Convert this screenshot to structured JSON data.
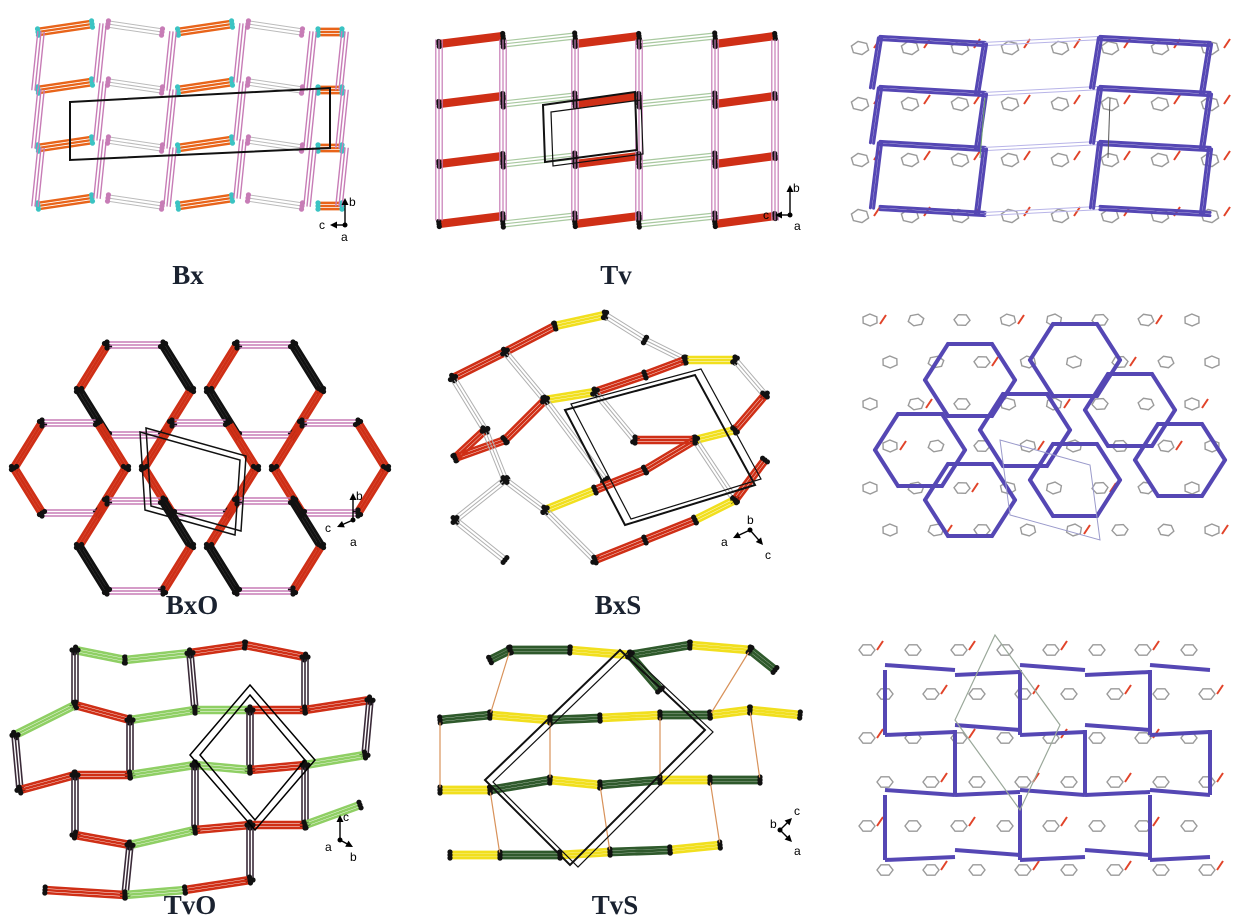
{
  "colors": {
    "red": "#cf2f16",
    "orange": "#e8641a",
    "pink": "#c77cb6",
    "green": "#8fcf64",
    "lightgreen": "#a9c9a0",
    "yellow": "#f1df1e",
    "darkgreen": "#2f5a2c",
    "purple": "#5547b4",
    "black": "#111111",
    "grey": "#9a9a9a",
    "cyan": "#3bc3c3",
    "tan": "#d8925a"
  },
  "captions": {
    "bx": "Bx",
    "tv": "Tv",
    "bxo": "BxO",
    "bxs": "BxS",
    "tvo": "TvO",
    "tvs": "TvS"
  },
  "axes": {
    "bx": {
      "up": "b",
      "left": "c",
      "dot": "a"
    },
    "tv": {
      "up": "b",
      "left": "c",
      "dot": "a"
    },
    "bxo": {
      "up": "b",
      "left": "c",
      "dot": "a"
    },
    "bxs": {
      "left": "a",
      "right": "c",
      "dot": "b"
    },
    "tvo": {
      "up": "c",
      "left": "a",
      "right": "b"
    },
    "tvs": {
      "up": "c",
      "right": "a",
      "dot": "b"
    }
  }
}
